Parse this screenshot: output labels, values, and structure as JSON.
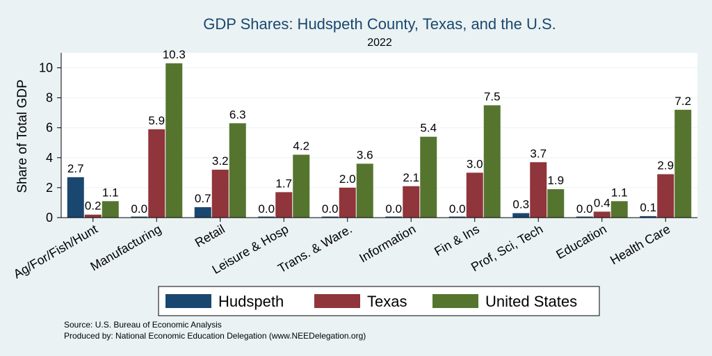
{
  "chart_data": {
    "type": "bar",
    "title": "GDP Shares: Hudspeth County, Texas, and the U.S.",
    "subtitle": "2022",
    "xlabel": "",
    "ylabel": "Share of Total GDP",
    "ylim": [
      0,
      11
    ],
    "yticks": [
      0,
      2,
      4,
      6,
      8,
      10
    ],
    "grid": true,
    "legend_position": "bottom",
    "categories": [
      "Ag/For/Fish/Hunt",
      "Manufacturing",
      "Retail",
      "Leisure & Hosp",
      "Trans. & Ware.",
      "Information",
      "Fin & Ins",
      "Prof, Sci, Tech",
      "Education",
      "Health Care"
    ],
    "series": [
      {
        "name": "Hudspeth",
        "color": "#1a476f",
        "values": [
          2.7,
          0.0,
          0.7,
          0.0,
          0.0,
          0.0,
          0.0,
          0.3,
          0.0,
          0.1
        ],
        "labels": [
          "2.7",
          "0.0",
          "0.7",
          "0.0",
          "0.0",
          "0.0",
          "0.0",
          "0.3",
          "0.0",
          "0.1"
        ]
      },
      {
        "name": "Texas",
        "color": "#90353b",
        "values": [
          0.2,
          5.9,
          3.2,
          1.7,
          2.0,
          2.1,
          3.0,
          3.7,
          0.4,
          2.9
        ],
        "labels": [
          "0.2",
          "5.9",
          "3.2",
          "1.7",
          "2.0",
          "2.1",
          "3.0",
          "3.7",
          "0.4",
          "2.9"
        ]
      },
      {
        "name": "United States",
        "color": "#55752f",
        "values": [
          1.1,
          10.3,
          6.3,
          4.2,
          3.6,
          5.4,
          7.5,
          1.9,
          1.1,
          7.2
        ],
        "labels": [
          "1.1",
          "10.3",
          "6.3",
          "4.2",
          "3.6",
          "5.4",
          "7.5",
          "1.9",
          "1.1",
          "7.2"
        ]
      }
    ]
  },
  "notes": {
    "source": "Source: U.S. Bureau of Economic Analysis",
    "produced": "Produced by: National Economic Education Delegation (www.NEEDelegation.org)"
  }
}
